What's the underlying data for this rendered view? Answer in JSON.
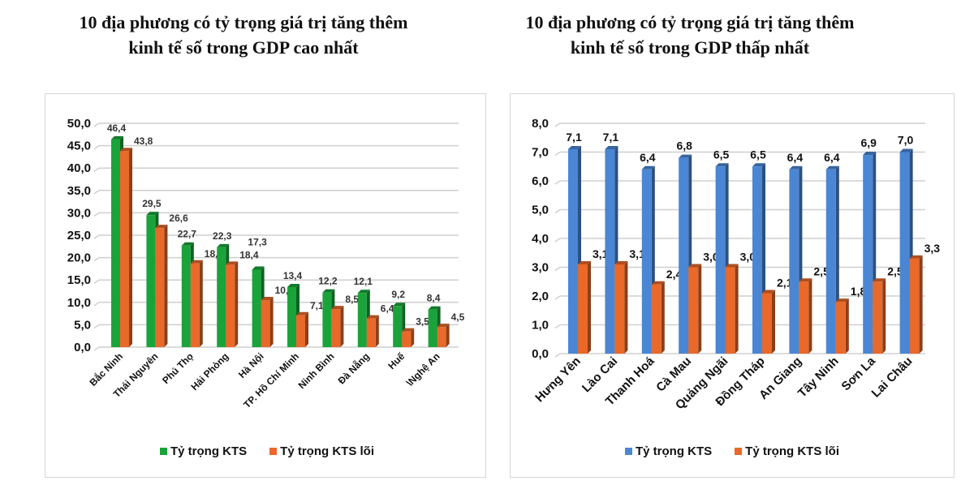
{
  "chart_data": [
    {
      "type": "bar",
      "title": "10 địa phương có tỷ trọng giá trị tăng thêm kinh tế số trong GDP cao nhất",
      "title_lines": [
        "10 địa phương có tỷ trọng giá trị tăng thêm",
        "kinh tế số trong GDP cao nhất"
      ],
      "categories": [
        "Bắc Ninh",
        "Thái Nguyên",
        "Phú Thọ",
        "Hải Phòng",
        "Hà Nội",
        "TP. Hồ Chí Minh",
        "Ninh Bình",
        "Đà Nẵng",
        "Huế",
        "\\Nghệ An"
      ],
      "series": [
        {
          "name": "Tỷ trọng KTS",
          "color": "#1aa33b",
          "values": [
            46.4,
            29.5,
            22.7,
            22.3,
            17.3,
            13.4,
            12.2,
            12.1,
            9.2,
            8.4
          ],
          "labels": [
            "46,4",
            "29,5",
            "22,7",
            "22,3",
            "17,3",
            "13,4",
            "12,2",
            "12,1",
            "9,2",
            "8,4"
          ]
        },
        {
          "name": "Tỷ trọng KTS lõi",
          "color": "#e8692a",
          "values": [
            43.8,
            26.6,
            18.7,
            18.4,
            10.5,
            7.1,
            8.5,
            6.4,
            3.5,
            4.5
          ],
          "labels": [
            "43,8",
            "26,6",
            "18,7",
            "18,4",
            "10,5",
            "7,1",
            "8,5",
            "6,4",
            "3,5",
            "4,5"
          ]
        }
      ],
      "ylim": [
        0,
        50
      ],
      "yticks": [
        "0,0",
        "5,0",
        "10,0",
        "15,0",
        "20,0",
        "25,0",
        "30,0",
        "35,0",
        "40,0",
        "45,0",
        "50,0"
      ],
      "grid": true,
      "legend_position": "bottom"
    },
    {
      "type": "bar",
      "title": "10 địa phương có tỷ trọng giá trị tăng thêm kinh tế số trong GDP thấp nhất",
      "title_lines": [
        "10 địa phương có tỷ trọng giá trị tăng thêm",
        "kinh tế số trong GDP thấp nhất"
      ],
      "categories": [
        "Hưng Yên",
        "Lào Cai",
        "Thanh Hoá",
        "Cà Mau",
        "Quảng Ngãi",
        "Đồng Tháp",
        "An Giang",
        "Tây Ninh",
        "Sơn La",
        "Lai Châu"
      ],
      "series": [
        {
          "name": "Tỷ trọng KTS",
          "color": "#4a86d4",
          "values": [
            7.1,
            7.1,
            6.4,
            6.8,
            6.5,
            6.5,
            6.4,
            6.4,
            6.9,
            7.0
          ],
          "labels": [
            "7,1",
            "7,1",
            "6,4",
            "6,8",
            "6,5",
            "6,5",
            "6,4",
            "6,4",
            "6,9",
            "7,0"
          ]
        },
        {
          "name": "Tỷ trọng KTS lõi",
          "color": "#e8692a",
          "values": [
            3.1,
            3.1,
            2.4,
            3.0,
            3.0,
            2.1,
            2.5,
            1.8,
            2.5,
            3.3
          ],
          "labels": [
            "3,1",
            "3,1",
            "2,4",
            "3,0",
            "3,0",
            "2,1",
            "2,5",
            "1,8",
            "2,5",
            "3,3"
          ]
        }
      ],
      "ylim": [
        0,
        8
      ],
      "yticks": [
        "0,0",
        "1,0",
        "2,0",
        "3,0",
        "4,0",
        "5,0",
        "6,0",
        "7,0",
        "8,0"
      ],
      "grid": true,
      "legend_position": "bottom"
    }
  ]
}
